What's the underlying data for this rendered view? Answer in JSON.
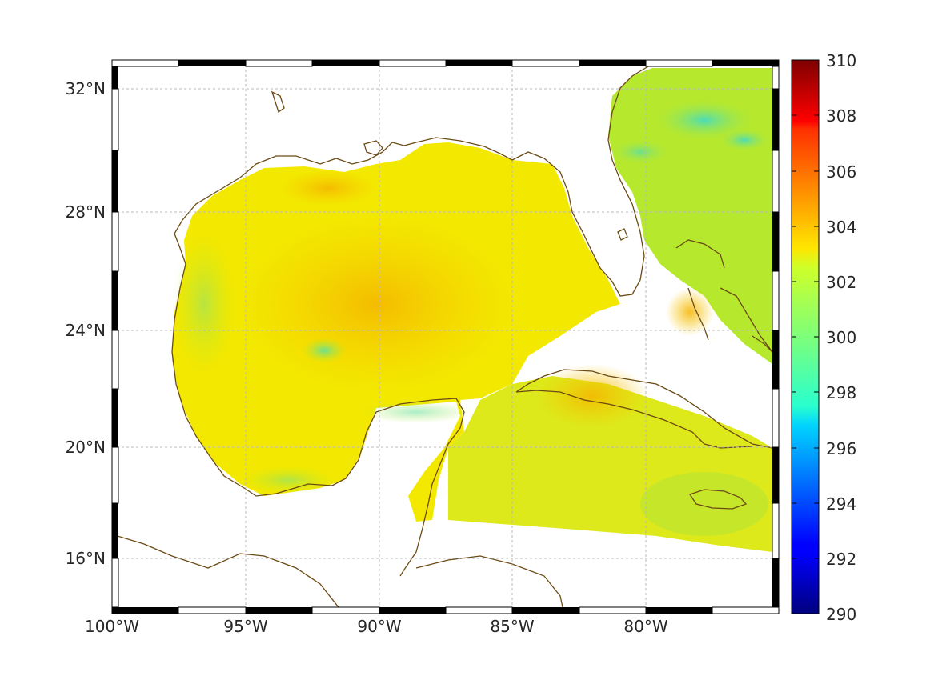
{
  "map": {
    "longitude_labels": [
      "100°W",
      "95°W",
      "90°W",
      "85°W",
      "80°W"
    ],
    "longitude_values": [
      -100,
      -95,
      -90,
      -85,
      -80
    ],
    "latitude_labels": [
      "32°N",
      "28°N",
      "24°N",
      "20°N",
      "16°N"
    ],
    "latitude_values": [
      32,
      28,
      24,
      20,
      16
    ],
    "lon_range": [
      -100,
      -75
    ],
    "lat_range": [
      14.3,
      33
    ],
    "grid": true,
    "coastline_color": "#6b4a14"
  },
  "colorbar": {
    "tick_labels": [
      "310",
      "308",
      "306",
      "304",
      "302",
      "300",
      "298",
      "296",
      "294",
      "292",
      "290"
    ],
    "min": 290,
    "max": 310,
    "colormap": "jet"
  },
  "field": {
    "dominant_color": "#f4ee00",
    "warm_color": "#f7b800",
    "cool_color": "#9ee83a",
    "coldest_color": "#39e1c9"
  }
}
